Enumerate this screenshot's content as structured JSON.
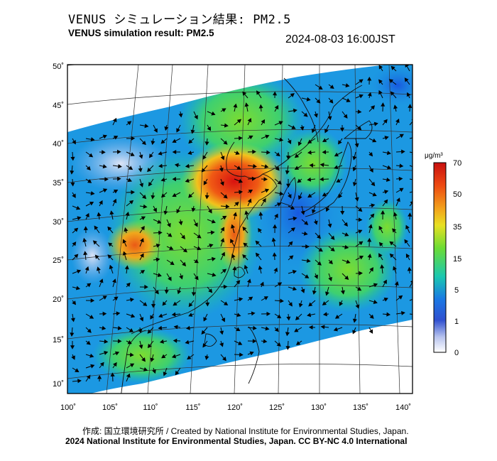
{
  "header": {
    "title_jp": "VENUS シミュレーション結果: PM2.5",
    "title_en": "VENUS simulation result: PM2.5",
    "timestamp": "2024-08-03 16:00JST"
  },
  "map": {
    "lat_labels": [
      "50˚",
      "45˚",
      "40˚",
      "35˚",
      "30˚",
      "25˚",
      "20˚",
      "15˚",
      "10˚"
    ],
    "lon_labels": [
      "100˚",
      "105˚",
      "110˚",
      "115˚",
      "120˚",
      "125˚",
      "130˚",
      "135˚",
      "140˚"
    ],
    "hotspots": [
      {
        "name": "north-china-plain",
        "lon": 118,
        "lat": 35,
        "value": 70
      },
      {
        "name": "south-china",
        "lon": 107,
        "lat": 26,
        "value": 55
      }
    ]
  },
  "colorbar": {
    "unit_label": "μg/m³",
    "ticks": [
      "70",
      "50",
      "35",
      "15",
      "5",
      "1",
      "0"
    ],
    "colors": [
      "#d11a10",
      "#f08018",
      "#f2d020",
      "#7ce030",
      "#18c8a8",
      "#1878e8",
      "#c8d0f0",
      "#ffffff"
    ]
  },
  "footer": {
    "credit_line": "作成: 国立環境研究所 / Created by National Institute for Environmental Studies, Japan.",
    "copyright_line": "2024 National Institute for Environmental Studies, Japan. CC BY-NC 4.0 International"
  }
}
